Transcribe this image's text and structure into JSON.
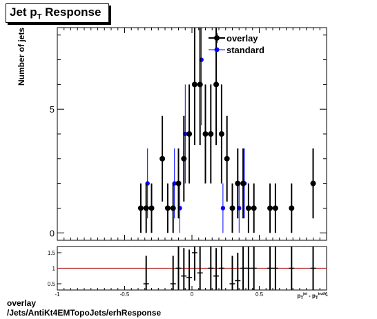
{
  "chart_data": {
    "type": "scatter",
    "title_main": "Jet p",
    "title_sub": "T",
    "title_rest": " Response",
    "ylabel": "Number of jets",
    "xlabel": "p_T^{jet} - p_T^{truth}",
    "xlim": [
      -1,
      1
    ],
    "ylim": [
      -0.3,
      8.3
    ],
    "yticks": [
      0,
      5
    ],
    "xticks": [
      -1,
      -0.5,
      0,
      0.5,
      1
    ],
    "xtick_labels": [
      "-1",
      "-0.5",
      "0",
      "0.5",
      "1"
    ],
    "legend_placement": "top-right",
    "series": [
      {
        "name": "overlay",
        "color": "#000000",
        "points": [
          [
            -0.38,
            1
          ],
          [
            -0.34,
            1
          ],
          [
            -0.3,
            1
          ],
          [
            -0.22,
            3
          ],
          [
            -0.18,
            1
          ],
          [
            -0.14,
            1
          ],
          [
            -0.1,
            2
          ],
          [
            -0.06,
            3
          ],
          [
            -0.02,
            4
          ],
          [
            0.02,
            6
          ],
          [
            0.06,
            6
          ],
          [
            0.1,
            4
          ],
          [
            0.14,
            4
          ],
          [
            0.18,
            6
          ],
          [
            0.22,
            4
          ],
          [
            0.26,
            3
          ],
          [
            0.3,
            1
          ],
          [
            0.34,
            2
          ],
          [
            0.38,
            2
          ],
          [
            0.42,
            1
          ],
          [
            0.46,
            1
          ],
          [
            0.58,
            1
          ],
          [
            0.62,
            1
          ],
          [
            0.74,
            1
          ],
          [
            0.9,
            2
          ]
        ]
      },
      {
        "name": "standard",
        "color": "#0000ff",
        "points": [
          [
            -0.34,
            2
          ],
          [
            -0.14,
            2
          ],
          [
            -0.1,
            1
          ],
          [
            -0.06,
            4
          ],
          [
            0.06,
            7
          ],
          [
            0.22,
            1
          ],
          [
            0.34,
            1
          ],
          [
            0.38,
            2
          ]
        ]
      }
    ],
    "ratio": {
      "ylim": [
        0.3,
        1.7
      ],
      "yticks": [
        0.5,
        1,
        1.5
      ],
      "ytick_labels": [
        "0.5",
        "1",
        "1.5"
      ],
      "reference_line": 1,
      "reference_color": "#b22222",
      "points": [
        [
          -0.34,
          0.5
        ],
        [
          -0.14,
          0.5
        ],
        [
          -0.1,
          1.0
        ],
        [
          -0.06,
          0.75
        ],
        [
          -0.02,
          0.7
        ],
        [
          0.02,
          1.5
        ],
        [
          0.06,
          0.85
        ],
        [
          0.14,
          1.0
        ],
        [
          0.18,
          0.75
        ],
        [
          0.22,
          1.0
        ],
        [
          0.3,
          0.5
        ],
        [
          0.34,
          0.6
        ],
        [
          0.38,
          1.0
        ],
        [
          0.42,
          1.0
        ],
        [
          0.46,
          1.0
        ],
        [
          0.58,
          1.0
        ],
        [
          0.62,
          1.0
        ],
        [
          0.74,
          1.0
        ],
        [
          0.9,
          1.0
        ]
      ]
    }
  },
  "footer": {
    "line1": "overlay",
    "line2": "/Jets/AntiKt4EMTopoJets/erhResponse"
  }
}
